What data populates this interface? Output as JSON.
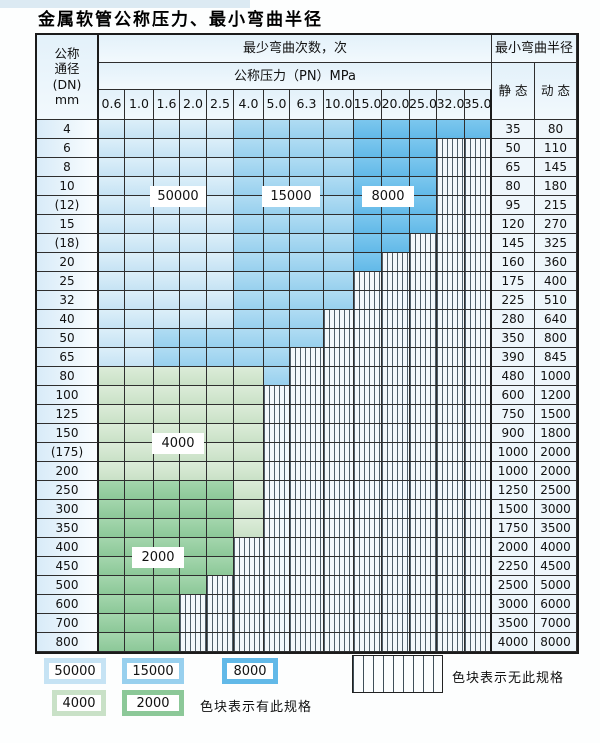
{
  "title": "金属软管公称压力、最小弯曲半径",
  "header": {
    "dn_lines": [
      "公称",
      "通径",
      "(DN)",
      "mm"
    ],
    "bend_cycles": "最少弯曲次数，次",
    "pressure": "公称压力（PN）MPa",
    "min_radius": "最小弯曲半径",
    "static_label": "静 态",
    "dynamic_label": "动 态"
  },
  "pressure_columns": [
    "0.6",
    "1.0",
    "1.6",
    "2.0",
    "2.5",
    "4.0",
    "5.0",
    "6.3",
    "10.0",
    "15.0",
    "20.0",
    "25.0",
    "32.0",
    "35.0"
  ],
  "cycle_classes": {
    "b1": {
      "label": "50000",
      "color": "#cfe8f7"
    },
    "b2": {
      "label": "15000",
      "color": "#a0d4ef"
    },
    "b3": {
      "label": "8000",
      "color": "#6fc0eb"
    },
    "g1": {
      "label": "4000",
      "color": "#d2e6d0"
    },
    "g2": {
      "label": "2000",
      "color": "#98cfa3"
    },
    "x": {
      "label": "无此规格",
      "color": "hatched-white"
    }
  },
  "overlays": [
    {
      "text": "50000"
    },
    {
      "text": "15000"
    },
    {
      "text": "8000"
    },
    {
      "text": "4000"
    },
    {
      "text": "2000"
    }
  ],
  "rows": [
    {
      "dn": "4",
      "static": "35",
      "dynamic": "80",
      "cells": [
        "b1",
        "b1",
        "b1",
        "b1",
        "b1",
        "b2",
        "b2",
        "b2",
        "b2",
        "b3",
        "b3",
        "b3",
        "b3",
        "b3"
      ]
    },
    {
      "dn": "6",
      "static": "50",
      "dynamic": "110",
      "cells": [
        "b1",
        "b1",
        "b1",
        "b1",
        "b1",
        "b2",
        "b2",
        "b2",
        "b2",
        "b3",
        "b3",
        "b3",
        "x",
        "x"
      ]
    },
    {
      "dn": "8",
      "static": "65",
      "dynamic": "145",
      "cells": [
        "b1",
        "b1",
        "b1",
        "b1",
        "b1",
        "b2",
        "b2",
        "b2",
        "b2",
        "b3",
        "b3",
        "b3",
        "x",
        "x"
      ]
    },
    {
      "dn": "10",
      "static": "80",
      "dynamic": "180",
      "cells": [
        "b1",
        "b1",
        "b1",
        "b1",
        "b1",
        "b2",
        "b2",
        "b2",
        "b2",
        "b3",
        "b3",
        "b3",
        "x",
        "x"
      ]
    },
    {
      "dn": "(12)",
      "static": "95",
      "dynamic": "215",
      "cells": [
        "b1",
        "b1",
        "b1",
        "b1",
        "b1",
        "b2",
        "b2",
        "b2",
        "b2",
        "b3",
        "b3",
        "b3",
        "x",
        "x"
      ]
    },
    {
      "dn": "15",
      "static": "120",
      "dynamic": "270",
      "cells": [
        "b1",
        "b1",
        "b1",
        "b1",
        "b1",
        "b2",
        "b2",
        "b2",
        "b2",
        "b3",
        "b3",
        "b3",
        "x",
        "x"
      ]
    },
    {
      "dn": "(18)",
      "static": "145",
      "dynamic": "325",
      "cells": [
        "b1",
        "b1",
        "b1",
        "b1",
        "b1",
        "b2",
        "b2",
        "b2",
        "b2",
        "b3",
        "b3",
        "x",
        "x",
        "x"
      ]
    },
    {
      "dn": "20",
      "static": "160",
      "dynamic": "360",
      "cells": [
        "b1",
        "b1",
        "b1",
        "b1",
        "b1",
        "b2",
        "b2",
        "b2",
        "b2",
        "b3",
        "x",
        "x",
        "x",
        "x"
      ]
    },
    {
      "dn": "25",
      "static": "175",
      "dynamic": "400",
      "cells": [
        "b1",
        "b1",
        "b1",
        "b1",
        "b1",
        "b2",
        "b2",
        "b2",
        "b2",
        "x",
        "x",
        "x",
        "x",
        "x"
      ]
    },
    {
      "dn": "32",
      "static": "225",
      "dynamic": "510",
      "cells": [
        "b1",
        "b1",
        "b1",
        "b1",
        "b1",
        "b2",
        "b2",
        "b2",
        "b2",
        "x",
        "x",
        "x",
        "x",
        "x"
      ]
    },
    {
      "dn": "40",
      "static": "280",
      "dynamic": "640",
      "cells": [
        "b1",
        "b1",
        "b1",
        "b1",
        "b1",
        "b2",
        "b2",
        "b2",
        "x",
        "x",
        "x",
        "x",
        "x",
        "x"
      ]
    },
    {
      "dn": "50",
      "static": "350",
      "dynamic": "800",
      "cells": [
        "b1",
        "b1",
        "b2",
        "b2",
        "b2",
        "b2",
        "b2",
        "b2",
        "x",
        "x",
        "x",
        "x",
        "x",
        "x"
      ]
    },
    {
      "dn": "65",
      "static": "390",
      "dynamic": "845",
      "cells": [
        "b1",
        "b1",
        "b2",
        "b2",
        "b2",
        "b2",
        "b2",
        "x",
        "x",
        "x",
        "x",
        "x",
        "x",
        "x"
      ]
    },
    {
      "dn": "80",
      "static": "480",
      "dynamic": "1000",
      "cells": [
        "g1",
        "g1",
        "g1",
        "g1",
        "g1",
        "g1",
        "b2",
        "x",
        "x",
        "x",
        "x",
        "x",
        "x",
        "x"
      ]
    },
    {
      "dn": "100",
      "static": "600",
      "dynamic": "1200",
      "cells": [
        "g1",
        "g1",
        "g1",
        "g1",
        "g1",
        "g1",
        "x",
        "x",
        "x",
        "x",
        "x",
        "x",
        "x",
        "x"
      ]
    },
    {
      "dn": "125",
      "static": "750",
      "dynamic": "1500",
      "cells": [
        "g1",
        "g1",
        "g1",
        "g1",
        "g1",
        "g1",
        "x",
        "x",
        "x",
        "x",
        "x",
        "x",
        "x",
        "x"
      ]
    },
    {
      "dn": "150",
      "static": "900",
      "dynamic": "1800",
      "cells": [
        "g1",
        "g1",
        "g1",
        "g1",
        "g1",
        "g1",
        "x",
        "x",
        "x",
        "x",
        "x",
        "x",
        "x",
        "x"
      ]
    },
    {
      "dn": "(175)",
      "static": "1000",
      "dynamic": "2000",
      "cells": [
        "g1",
        "g1",
        "g1",
        "g1",
        "g1",
        "g1",
        "x",
        "x",
        "x",
        "x",
        "x",
        "x",
        "x",
        "x"
      ]
    },
    {
      "dn": "200",
      "static": "1000",
      "dynamic": "2000",
      "cells": [
        "g1",
        "g1",
        "g1",
        "g1",
        "g1",
        "g1",
        "x",
        "x",
        "x",
        "x",
        "x",
        "x",
        "x",
        "x"
      ]
    },
    {
      "dn": "250",
      "static": "1250",
      "dynamic": "2500",
      "cells": [
        "g2",
        "g2",
        "g2",
        "g2",
        "g2",
        "g1",
        "x",
        "x",
        "x",
        "x",
        "x",
        "x",
        "x",
        "x"
      ]
    },
    {
      "dn": "300",
      "static": "1500",
      "dynamic": "3000",
      "cells": [
        "g2",
        "g2",
        "g2",
        "g2",
        "g2",
        "g1",
        "x",
        "x",
        "x",
        "x",
        "x",
        "x",
        "x",
        "x"
      ]
    },
    {
      "dn": "350",
      "static": "1750",
      "dynamic": "3500",
      "cells": [
        "g2",
        "g2",
        "g2",
        "g2",
        "g2",
        "g1",
        "x",
        "x",
        "x",
        "x",
        "x",
        "x",
        "x",
        "x"
      ]
    },
    {
      "dn": "400",
      "static": "2000",
      "dynamic": "4000",
      "cells": [
        "g2",
        "g2",
        "g2",
        "g2",
        "g2",
        "x",
        "x",
        "x",
        "x",
        "x",
        "x",
        "x",
        "x",
        "x"
      ]
    },
    {
      "dn": "450",
      "static": "2250",
      "dynamic": "4500",
      "cells": [
        "g2",
        "g2",
        "g2",
        "g2",
        "g2",
        "x",
        "x",
        "x",
        "x",
        "x",
        "x",
        "x",
        "x",
        "x"
      ]
    },
    {
      "dn": "500",
      "static": "2500",
      "dynamic": "5000",
      "cells": [
        "g2",
        "g2",
        "g2",
        "g2",
        "x",
        "x",
        "x",
        "x",
        "x",
        "x",
        "x",
        "x",
        "x",
        "x"
      ]
    },
    {
      "dn": "600",
      "static": "3000",
      "dynamic": "6000",
      "cells": [
        "g2",
        "g2",
        "g2",
        "x",
        "x",
        "x",
        "x",
        "x",
        "x",
        "x",
        "x",
        "x",
        "x",
        "x"
      ]
    },
    {
      "dn": "700",
      "static": "3500",
      "dynamic": "7000",
      "cells": [
        "g2",
        "g2",
        "g2",
        "x",
        "x",
        "x",
        "x",
        "x",
        "x",
        "x",
        "x",
        "x",
        "x",
        "x"
      ]
    },
    {
      "dn": "800",
      "static": "4000",
      "dynamic": "8000",
      "cells": [
        "g2",
        "g2",
        "g2",
        "x",
        "x",
        "x",
        "x",
        "x",
        "x",
        "x",
        "x",
        "x",
        "x",
        "x"
      ]
    }
  ],
  "legend": {
    "items": [
      {
        "label": "50000",
        "color": "#cfe8f7"
      },
      {
        "label": "15000",
        "color": "#a0d4ef"
      },
      {
        "label": "8000",
        "color": "#6fc0eb"
      },
      {
        "label": "4000",
        "color": "#d2e6d0"
      },
      {
        "label": "2000",
        "color": "#98cfa3"
      }
    ],
    "has_spec": "色块表示有此规格",
    "no_spec": "色块表示无此规格"
  }
}
